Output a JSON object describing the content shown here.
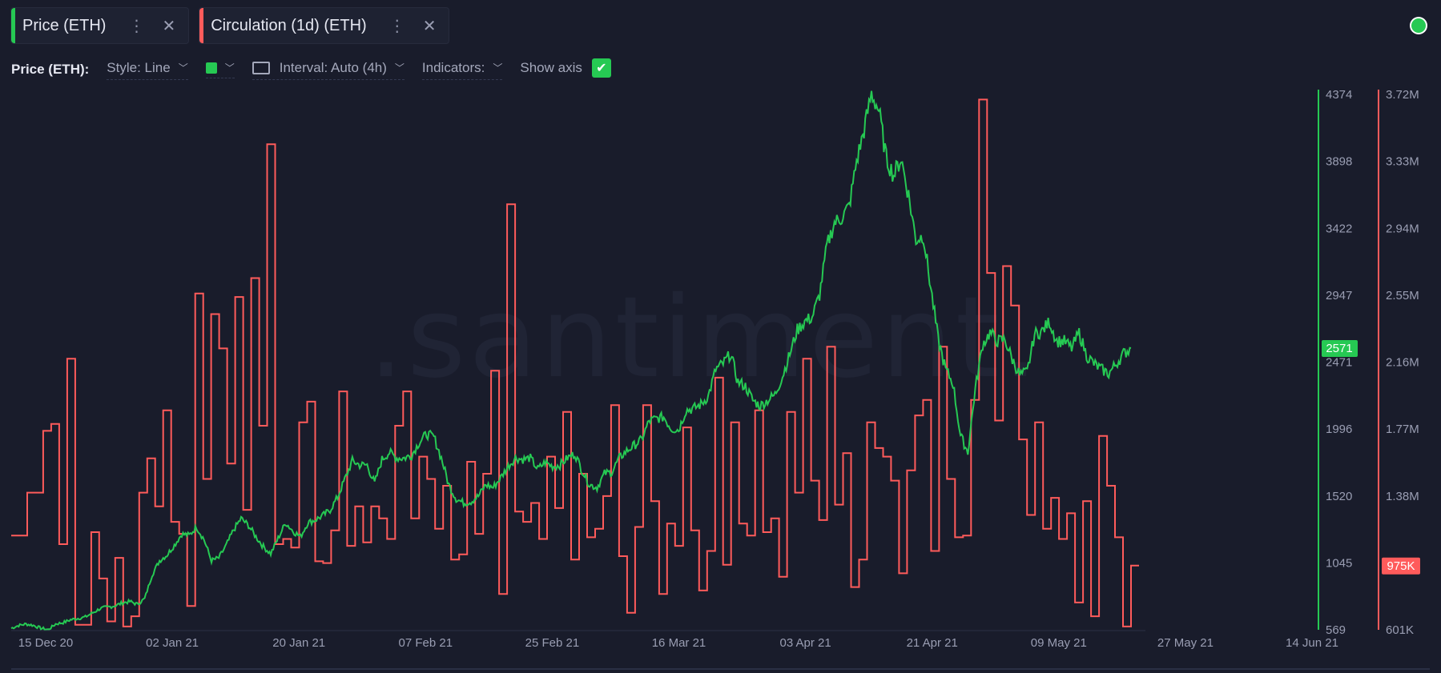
{
  "tabs": [
    {
      "label": "Price (ETH)",
      "color": "#26c953"
    },
    {
      "label": "Circulation (1d) (ETH)",
      "color": "#ff5b5b"
    }
  ],
  "toolbar": {
    "metric_label": "Price (ETH):",
    "style": "Style: Line",
    "interval": "Interval: Auto (4h)",
    "indicators": "Indicators:",
    "show_axis": "Show axis"
  },
  "watermark": ".santiment.",
  "chart_data": {
    "type": "line",
    "x_ticks": [
      "15 Dec 20",
      "02 Jan 21",
      "20 Jan 21",
      "07 Feb 21",
      "25 Feb 21",
      "16 Mar 21",
      "03 Apr 21",
      "21 Apr 21",
      "09 May 21",
      "27 May 21",
      "14 Jun 21"
    ],
    "price_axis": {
      "ticks": [
        "4374",
        "3898",
        "3422",
        "2947",
        "2471",
        "1996",
        "1520",
        "1045",
        "569"
      ],
      "range": [
        569,
        4374
      ],
      "color": "#26c953",
      "current": "2571"
    },
    "circ_axis": {
      "ticks": [
        "3.72M",
        "3.33M",
        "2.94M",
        "2.55M",
        "2.16M",
        "1.77M",
        "1.38M",
        "601K"
      ],
      "range": [
        601000,
        3720000
      ],
      "color": "#ff5b5b",
      "current": "975K"
    },
    "series": [
      {
        "name": "Price (ETH)",
        "color": "#26c953",
        "values": [
          580,
          600,
          610,
          600,
          580,
          570,
          610,
          620,
          640,
          650,
          660,
          690,
          720,
          730,
          740,
          760,
          770,
          750,
          790,
          960,
          1060,
          1100,
          1170,
          1250,
          1240,
          1300,
          1210,
          1060,
          1080,
          1170,
          1280,
          1360,
          1310,
          1230,
          1160,
          1110,
          1220,
          1330,
          1270,
          1230,
          1330,
          1350,
          1380,
          1420,
          1510,
          1640,
          1770,
          1740,
          1740,
          1610,
          1780,
          1830,
          1790,
          1790,
          1810,
          1900,
          1960,
          1940,
          1790,
          1600,
          1500,
          1470,
          1480,
          1520,
          1600,
          1580,
          1650,
          1730,
          1790,
          1780,
          1790,
          1710,
          1760,
          1730,
          1740,
          1790,
          1820,
          1700,
          1600,
          1580,
          1680,
          1690,
          1790,
          1840,
          1880,
          1920,
          2050,
          2070,
          2080,
          2000,
          1990,
          2130,
          2140,
          2170,
          2230,
          2420,
          2460,
          2530,
          2330,
          2300,
          2200,
          2160,
          2200,
          2240,
          2370,
          2530,
          2700,
          2760,
          2790,
          2950,
          3300,
          3460,
          3500,
          3580,
          3900,
          4120,
          4380,
          4260,
          3920,
          3800,
          3920,
          3660,
          3340,
          3370,
          3000,
          2630,
          2420,
          2320,
          1950,
          1830,
          2280,
          2600,
          2680,
          2620,
          2630,
          2490,
          2380,
          2400,
          2670,
          2690,
          2760,
          2620,
          2620,
          2570,
          2680,
          2520,
          2460,
          2420,
          2390,
          2460,
          2530,
          2571
        ]
      },
      {
        "name": "Circulation (1d) (ETH)",
        "color": "#ff5b5b",
        "values": [
          1150000,
          1150000,
          1400000,
          1400000,
          1760000,
          1800000,
          1100000,
          2180000,
          630000,
          630000,
          1170000,
          900000,
          650000,
          1020000,
          620000,
          680000,
          1400000,
          1600000,
          1320000,
          1880000,
          1230000,
          1160000,
          740000,
          2560000,
          1480000,
          2440000,
          2240000,
          1570000,
          2540000,
          1300000,
          2650000,
          1790000,
          3430000,
          1100000,
          1130000,
          1080000,
          1810000,
          1930000,
          1000000,
          990000,
          1180000,
          1990000,
          1090000,
          1320000,
          1110000,
          1320000,
          1250000,
          1130000,
          1790000,
          1990000,
          1250000,
          1610000,
          1480000,
          1190000,
          1440000,
          1010000,
          1040000,
          1580000,
          1160000,
          1510000,
          2110000,
          810000,
          3080000,
          1290000,
          1230000,
          1340000,
          1130000,
          1610000,
          1310000,
          1870000,
          1010000,
          1510000,
          1140000,
          1190000,
          1380000,
          1910000,
          1030000,
          700000,
          1200000,
          1910000,
          1350000,
          810000,
          1220000,
          1090000,
          1780000,
          1180000,
          830000,
          1060000,
          2070000,
          980000,
          1810000,
          1220000,
          1150000,
          1880000,
          1170000,
          1250000,
          910000,
          1870000,
          1400000,
          2180000,
          1470000,
          1240000,
          2250000,
          1330000,
          1630000,
          850000,
          1010000,
          1810000,
          1660000,
          1610000,
          1470000,
          930000,
          1530000,
          1850000,
          1940000,
          1060000,
          2250000,
          1480000,
          1140000,
          1150000,
          1940000,
          3690000,
          2680000,
          1820000,
          2720000,
          2490000,
          1710000,
          1270000,
          1810000,
          1190000,
          1370000,
          1130000,
          1280000,
          760000,
          1350000,
          680000,
          1730000,
          1440000,
          1140000,
          620000,
          975000
        ]
      }
    ]
  }
}
